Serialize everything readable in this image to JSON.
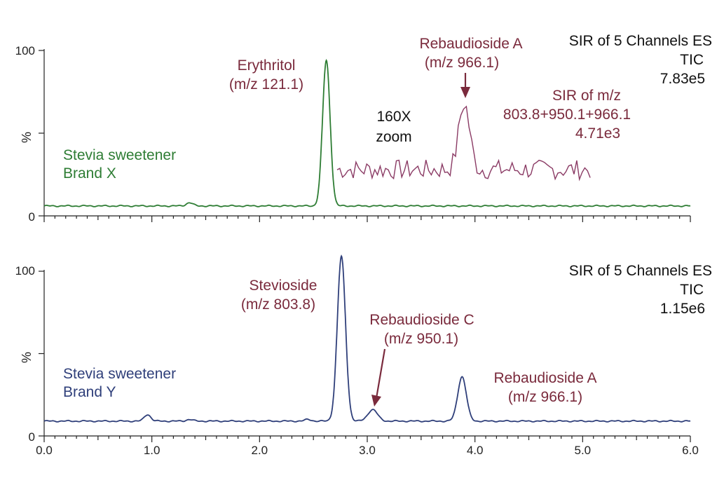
{
  "colors": {
    "brand_x": "#2e7d34",
    "brand_y": "#2f3f7a",
    "annotation": "#7a2a3c",
    "zoom_trace": "#8a3a64",
    "axis": "#222222"
  },
  "chart_data": [
    {
      "type": "line",
      "title": "",
      "ylabel": "%",
      "xlim": [
        0.0,
        6.0
      ],
      "ylim": [
        0,
        100
      ],
      "y_ticks": [
        "0",
        "100"
      ],
      "header": {
        "line1": "SIR of 5 Channels ES",
        "line2": "TIC",
        "line3": "7.83e5"
      },
      "sample_label": [
        "Stevia sweetener",
        "Brand X"
      ],
      "baseline": 6,
      "peaks": [
        {
          "rt": 1.35,
          "height": 2,
          "width": 0.03
        },
        {
          "rt": 2.62,
          "height": 88,
          "width": 0.035
        }
      ],
      "annotations": [
        {
          "label": [
            "Erythritol",
            "(m/z 121.1)"
          ],
          "rt": 2.62
        },
        {
          "label": [
            "Rebaudioside A",
            "(m/z 966.1)"
          ],
          "rt": 3.9
        }
      ],
      "zoom": {
        "label": [
          "160X",
          "zoom"
        ],
        "channel": [
          "SIR of m/z",
          "803.8+950.1+966.1",
          "4.71e3"
        ],
        "x_range": [
          2.72,
          5.08
        ],
        "baseline": 28,
        "peak": {
          "rt": 3.9,
          "height": 68
        }
      }
    },
    {
      "type": "line",
      "title": "",
      "ylabel": "%",
      "xlim": [
        0.0,
        6.0
      ],
      "ylim": [
        0,
        100
      ],
      "y_ticks": [
        "0",
        "100"
      ],
      "x_ticks": [
        "0.0",
        "1.0",
        "2.0",
        "3.0",
        "4.0",
        "5.0",
        "6.0"
      ],
      "header": {
        "line1": "SIR of 5 Channels ES",
        "line2": "TIC",
        "line3": "1.15e6"
      },
      "sample_label": [
        "Stevia sweetener",
        "Brand Y"
      ],
      "baseline": 9,
      "peaks": [
        {
          "rt": 0.96,
          "height": 4,
          "width": 0.03
        },
        {
          "rt": 1.35,
          "height": 1,
          "width": 0.03
        },
        {
          "rt": 2.45,
          "height": 1,
          "width": 0.03
        },
        {
          "rt": 2.76,
          "height": 100,
          "width": 0.038
        },
        {
          "rt": 3.05,
          "height": 7,
          "width": 0.045
        },
        {
          "rt": 3.88,
          "height": 27,
          "width": 0.04
        }
      ],
      "annotations": [
        {
          "label": [
            "Stevioside",
            "(m/z 803.8)"
          ],
          "rt": 2.76
        },
        {
          "label": [
            "Rebaudioside C",
            "(m/z 950.1)"
          ],
          "rt": 3.05
        },
        {
          "label": [
            "Rebaudioside A",
            "(m/z 966.1)"
          ],
          "rt": 3.88
        }
      ]
    }
  ]
}
